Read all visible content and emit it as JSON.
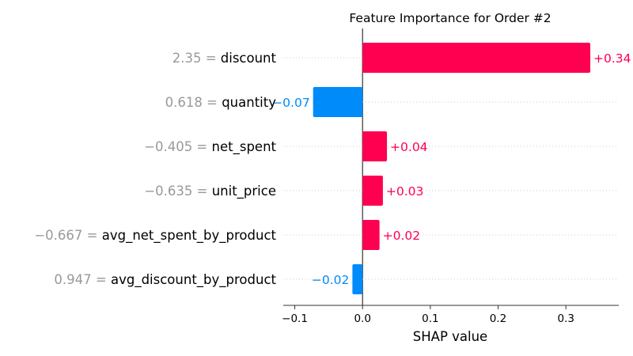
{
  "chart_data": {
    "type": "bar",
    "orientation": "horizontal",
    "title": "Feature Importance for Order #2",
    "xlabel": "SHAP value",
    "ylabel": "",
    "xlim": [
      -0.117,
      0.378
    ],
    "xticks": [
      -0.1,
      0.0,
      0.1,
      0.2,
      0.3
    ],
    "xtick_labels": [
      "−0.1",
      "0.0",
      "0.1",
      "0.2",
      "0.3"
    ],
    "baseline": 0.0,
    "grid": false,
    "colors": {
      "positive": "#ff0051",
      "negative": "#008bfb",
      "feature_value_text": "#999999",
      "feature_name_text": "#000000",
      "axis": "#333333"
    },
    "rows": [
      {
        "feature": "discount",
        "feature_value": "2.35",
        "shap": 0.336,
        "value_label": "+0.34"
      },
      {
        "feature": "quantity",
        "feature_value": "0.618",
        "shap": -0.073,
        "value_label": "−0.07"
      },
      {
        "feature": "net_spent",
        "feature_value": "−0.405",
        "shap": 0.036,
        "value_label": "+0.04"
      },
      {
        "feature": "unit_price",
        "feature_value": "−0.635",
        "shap": 0.03,
        "value_label": "+0.03"
      },
      {
        "feature": "avg_net_spent_by_product",
        "feature_value": "−0.667",
        "shap": 0.025,
        "value_label": "+0.02"
      },
      {
        "feature": "avg_discount_by_product",
        "feature_value": "0.947",
        "shap": -0.015,
        "value_label": "−0.02"
      }
    ]
  }
}
